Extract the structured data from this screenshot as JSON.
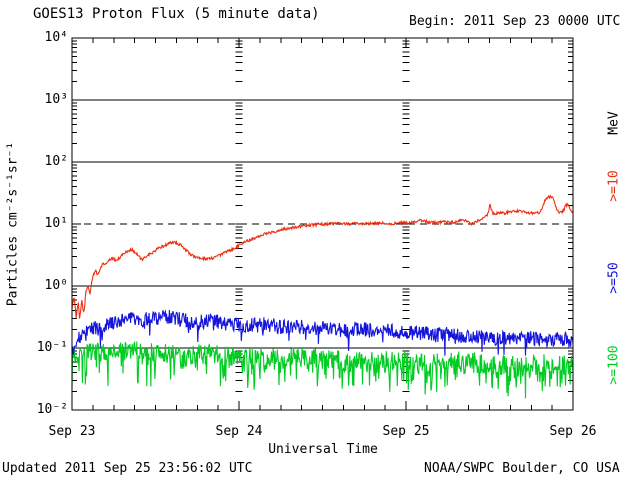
{
  "header": {
    "title": "GOES13 Proton Flux (5 minute data)",
    "begin_label": "Begin: 2011 Sep 23 0000 UTC"
  },
  "footer": {
    "updated": "Updated 2011 Sep 25 23:56:02 UTC",
    "source": "NOAA/SWPC Boulder, CO USA"
  },
  "colors": {
    "axis": "#000000",
    "background": "#ffffff",
    "red_series": "#ee2e10",
    "blue_series": "#1414dc",
    "green_series": "#00cc22"
  },
  "chart_data": {
    "type": "line",
    "title": "GOES13 Proton Flux (5 minute data)",
    "begin_label": "Begin: 2011 Sep 23 0000 UTC",
    "xlabel": "Universal Time",
    "ylabel": "Particles cm⁻²s⁻¹sr⁻¹",
    "right_axis_unit": "MeV",
    "x_tick_labels": [
      "Sep 23",
      "Sep 24",
      "Sep 25",
      "Sep 26"
    ],
    "x_range_hours": [
      0,
      72
    ],
    "minor_xtick_hours": 3,
    "y_scale": "log",
    "ylim": [
      0.01,
      10000
    ],
    "y_tick_labels": [
      "10⁴",
      "10³",
      "10²",
      "10¹",
      "10⁰",
      "10⁻¹",
      "10⁻²"
    ],
    "y_tick_exponents": [
      4,
      3,
      2,
      1,
      0,
      -1,
      -2
    ],
    "grid": {
      "solid_hlines": [
        1000,
        100,
        1,
        0.1
      ],
      "dashed_hline_threshold": 10,
      "day_boundary_dash_columns_hours": [
        24,
        48
      ]
    },
    "legend_position": "right-rotated",
    "series": [
      {
        "name": ">=100",
        "threshold_mev": 100,
        "color": "#00cc22",
        "seed": 7,
        "noise_sigma": 0.17,
        "spike_prob": 0.22,
        "spike_depth": 0.42,
        "points": [
          [
            0,
            0.085
          ],
          [
            4,
            0.08
          ],
          [
            8,
            0.09
          ],
          [
            12,
            0.085
          ],
          [
            16,
            0.075
          ],
          [
            20,
            0.08
          ],
          [
            24,
            0.07
          ],
          [
            28,
            0.065
          ],
          [
            32,
            0.07
          ],
          [
            36,
            0.065
          ],
          [
            40,
            0.06
          ],
          [
            44,
            0.065
          ],
          [
            48,
            0.06
          ],
          [
            52,
            0.055
          ],
          [
            56,
            0.06
          ],
          [
            60,
            0.055
          ],
          [
            64,
            0.05
          ],
          [
            68,
            0.055
          ],
          [
            72,
            0.05
          ]
        ]
      },
      {
        "name": ">=50",
        "threshold_mev": 50,
        "color": "#1414dc",
        "seed": 99,
        "noise_sigma": 0.12,
        "spike_prob": 0.04,
        "spike_depth": 0.3,
        "points": [
          [
            0,
            0.1
          ],
          [
            1,
            0.14
          ],
          [
            2,
            0.17
          ],
          [
            3,
            0.22
          ],
          [
            4,
            0.2
          ],
          [
            6,
            0.26
          ],
          [
            8,
            0.3
          ],
          [
            10,
            0.28
          ],
          [
            12,
            0.3
          ],
          [
            14,
            0.32
          ],
          [
            16,
            0.28
          ],
          [
            18,
            0.26
          ],
          [
            20,
            0.27
          ],
          [
            22,
            0.26
          ],
          [
            24,
            0.24
          ],
          [
            26,
            0.23
          ],
          [
            28,
            0.24
          ],
          [
            30,
            0.22
          ],
          [
            32,
            0.23
          ],
          [
            34,
            0.21
          ],
          [
            36,
            0.21
          ],
          [
            38,
            0.2
          ],
          [
            40,
            0.19
          ],
          [
            42,
            0.2
          ],
          [
            44,
            0.18
          ],
          [
            46,
            0.19
          ],
          [
            48,
            0.17
          ],
          [
            50,
            0.18
          ],
          [
            52,
            0.16
          ],
          [
            54,
            0.17
          ],
          [
            56,
            0.15
          ],
          [
            58,
            0.16
          ],
          [
            60,
            0.14
          ],
          [
            62,
            0.15
          ],
          [
            64,
            0.14
          ],
          [
            66,
            0.15
          ],
          [
            68,
            0.13
          ],
          [
            70,
            0.14
          ],
          [
            72,
            0.13
          ]
        ]
      },
      {
        "name": ">=10",
        "threshold_mev": 10,
        "color": "#ee2e10",
        "seed": 1234,
        "noise_sigma": 0.022,
        "spike_prob": 0,
        "spike_depth": 0,
        "points": [
          [
            0,
            0.45
          ],
          [
            0.3,
            0.7
          ],
          [
            0.6,
            0.3
          ],
          [
            0.9,
            0.55
          ],
          [
            1.1,
            0.28
          ],
          [
            1.4,
            0.6
          ],
          [
            1.7,
            0.35
          ],
          [
            2,
            0.8
          ],
          [
            2.3,
            1.0
          ],
          [
            2.6,
            0.75
          ],
          [
            2.9,
            1.3
          ],
          [
            3.3,
            1.8
          ],
          [
            3.7,
            1.5
          ],
          [
            4.3,
            2.2
          ],
          [
            5,
            2.35
          ],
          [
            5.7,
            2.8
          ],
          [
            6.5,
            2.6
          ],
          [
            7.2,
            3.2
          ],
          [
            7.9,
            3.6
          ],
          [
            8.6,
            3.9
          ],
          [
            9.3,
            3.3
          ],
          [
            10.1,
            2.6
          ],
          [
            10.8,
            3.1
          ],
          [
            11.5,
            3.4
          ],
          [
            12.2,
            3.9
          ],
          [
            12.9,
            4.3
          ],
          [
            13.7,
            4.7
          ],
          [
            14.4,
            5.1
          ],
          [
            15.1,
            4.9
          ],
          [
            15.8,
            4.4
          ],
          [
            16.5,
            3.7
          ],
          [
            17.2,
            3.1
          ],
          [
            18,
            2.9
          ],
          [
            18.7,
            2.8
          ],
          [
            19.4,
            2.75
          ],
          [
            20.1,
            2.8
          ],
          [
            20.8,
            3.0
          ],
          [
            21.6,
            3.3
          ],
          [
            22.3,
            3.6
          ],
          [
            23,
            3.9
          ],
          [
            23.7,
            4.3
          ],
          [
            24,
            4.6
          ],
          [
            24.9,
            5.2
          ],
          [
            25.6,
            5.6
          ],
          [
            26.3,
            6.0
          ],
          [
            27,
            6.5
          ],
          [
            27.7,
            6.9
          ],
          [
            28.5,
            7.3
          ],
          [
            29.2,
            7.6
          ],
          [
            29.9,
            8.0
          ],
          [
            30.6,
            8.3
          ],
          [
            31.3,
            8.6
          ],
          [
            32,
            8.9
          ],
          [
            32.8,
            9.2
          ],
          [
            34.2,
            9.6
          ],
          [
            35.6,
            9.9
          ],
          [
            37.1,
            10.1
          ],
          [
            38.5,
            10.2
          ],
          [
            40,
            10.0
          ],
          [
            41.4,
            10.3
          ],
          [
            42.8,
            10.1
          ],
          [
            44.3,
            10.4
          ],
          [
            45.7,
            10.2
          ],
          [
            47.1,
            10.3
          ],
          [
            48,
            10.5
          ],
          [
            49.3,
            10.6
          ],
          [
            50,
            11.5
          ],
          [
            50.7,
            11.0
          ],
          [
            51.5,
            10.6
          ],
          [
            52.2,
            10.4
          ],
          [
            52.9,
            10.5
          ],
          [
            53.6,
            10.8
          ],
          [
            54.3,
            10.6
          ],
          [
            55,
            10.5
          ],
          [
            55.8,
            11.5
          ],
          [
            56.2,
            12.0
          ],
          [
            56.6,
            11.2
          ],
          [
            57.2,
            10.3
          ],
          [
            57.5,
            10.0
          ],
          [
            58.1,
            10.8
          ],
          [
            58.6,
            11.8
          ],
          [
            59.2,
            13.0
          ],
          [
            59.8,
            14.5
          ],
          [
            60.1,
            21.0
          ],
          [
            60.4,
            15.0
          ],
          [
            60.9,
            14.8
          ],
          [
            61.5,
            15.2
          ],
          [
            62.2,
            15.0
          ],
          [
            63,
            15.8
          ],
          [
            63.7,
            16.2
          ],
          [
            64.4,
            16.0
          ],
          [
            65.1,
            15.5
          ],
          [
            65.8,
            15.2
          ],
          [
            66.5,
            14.8
          ],
          [
            67.3,
            15.5
          ],
          [
            67.7,
            20.0
          ],
          [
            68.1,
            26.0
          ],
          [
            68.7,
            28.0
          ],
          [
            69.1,
            26.5
          ],
          [
            69.6,
            18.0
          ],
          [
            70.1,
            15.0
          ],
          [
            70.6,
            16.0
          ],
          [
            71,
            20.5
          ],
          [
            71.4,
            19.5
          ],
          [
            71.7,
            16.0
          ],
          [
            72,
            16.0
          ]
        ]
      }
    ]
  }
}
